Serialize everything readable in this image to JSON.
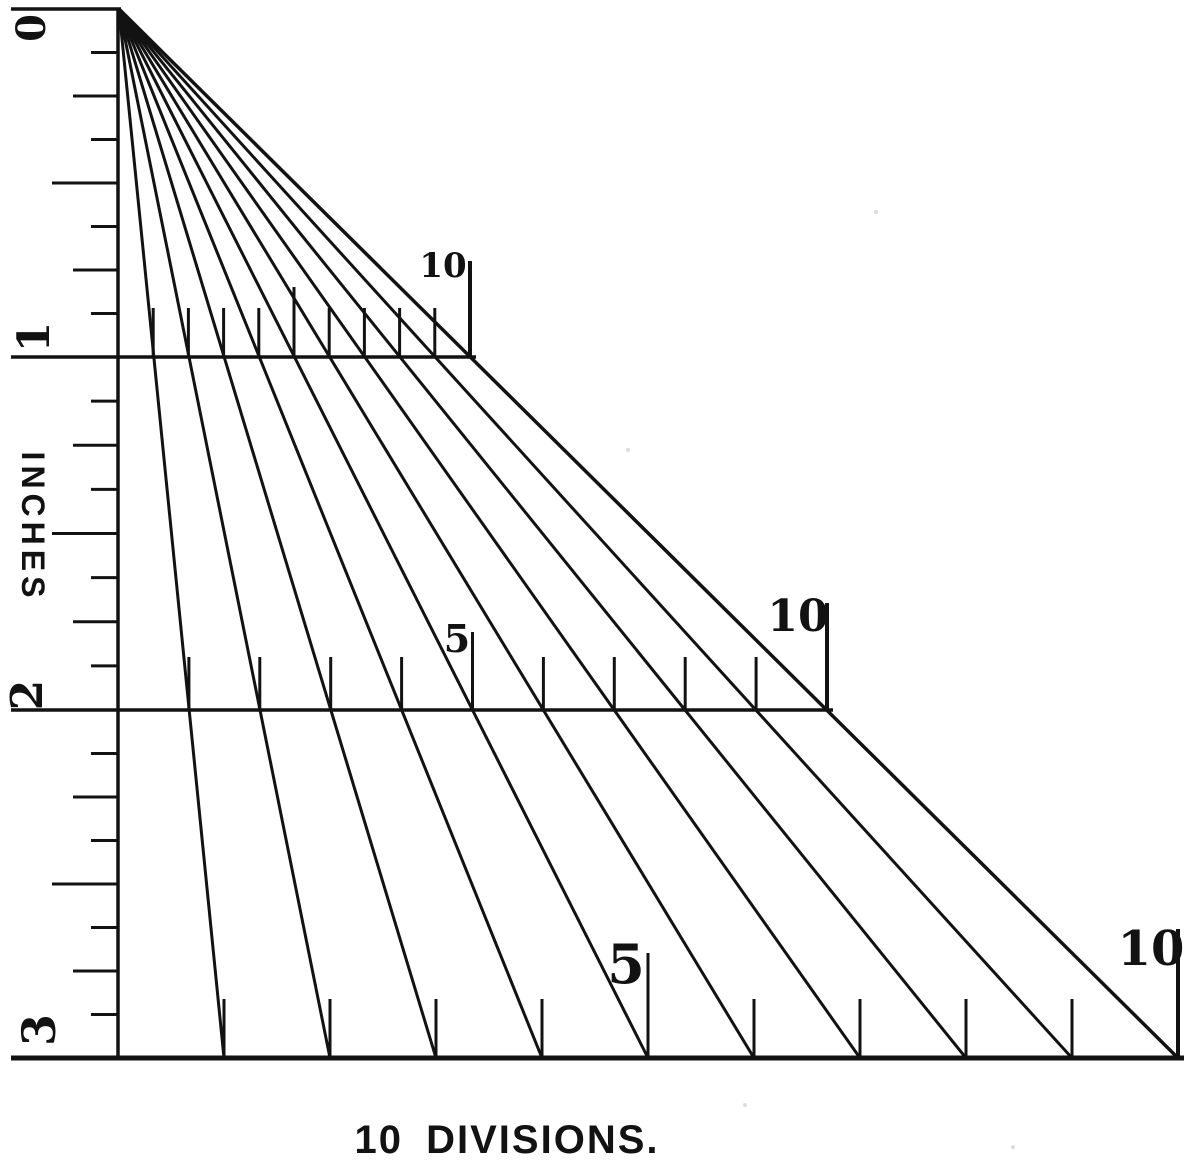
{
  "figure": {
    "ink_color": "#121212",
    "background": "#ffffff",
    "caption": "10 DIVISIONS.",
    "ruler": {
      "unit_label": "INCHES",
      "inch_labels": [
        "0",
        "1",
        "2",
        "3"
      ],
      "subdivisions_per_inch": 8
    },
    "fan": {
      "divisions": 10
    },
    "scale_lines": [
      {
        "inch": "1",
        "divisions": 10,
        "mid_label": "",
        "end_label": "10"
      },
      {
        "inch": "2",
        "divisions": 10,
        "mid_label": "5",
        "end_label": "10"
      },
      {
        "inch": "3",
        "divisions": 10,
        "mid_label": "5",
        "end_label": "10"
      }
    ]
  }
}
